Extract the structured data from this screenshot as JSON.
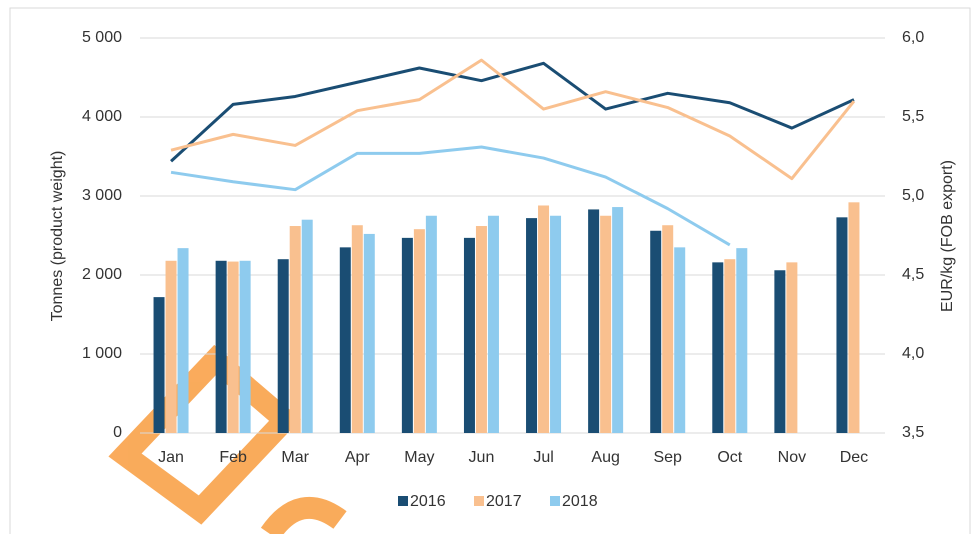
{
  "chart_data": {
    "type": "bar_line",
    "y_label": "Tonnes (product weight)",
    "y2_label": "EUR/kg (FOB export)",
    "categories": [
      "Jan",
      "Feb",
      "Mar",
      "Apr",
      "May",
      "Jun",
      "Jul",
      "Aug",
      "Sep",
      "Oct",
      "Nov",
      "Dec"
    ],
    "series": [
      {
        "name": "2016",
        "color": "#1a4d73",
        "values": [
          1720,
          2180,
          2200,
          2350,
          2470,
          2470,
          2720,
          2830,
          2560,
          2160,
          2060,
          2730
        ],
        "y2_values": [
          5.22,
          5.58,
          5.63,
          5.72,
          5.81,
          5.73,
          5.84,
          5.55,
          5.65,
          5.59,
          5.43,
          5.61
        ]
      },
      {
        "name": "2017",
        "color": "#f9c08f",
        "values": [
          2180,
          2170,
          2620,
          2630,
          2580,
          2620,
          2880,
          2750,
          2630,
          2200,
          2160,
          2920
        ],
        "y2_values": [
          5.29,
          5.39,
          5.32,
          5.54,
          5.61,
          5.86,
          5.55,
          5.66,
          5.56,
          5.38,
          5.11,
          5.6
        ]
      },
      {
        "name": "2018",
        "color": "#8ecbee",
        "values": [
          2340,
          2180,
          2700,
          2520,
          2750,
          2750,
          2750,
          2860,
          2350,
          2340,
          null,
          null
        ],
        "y2_values": [
          5.15,
          5.09,
          5.04,
          5.27,
          5.27,
          5.31,
          5.24,
          5.12,
          4.92,
          4.69,
          null,
          null
        ]
      }
    ],
    "ylim": [
      0,
      5000
    ],
    "yticks": [
      0,
      {
        "value": 1000,
        "label": "1 000"
      },
      {
        "value": 2000,
        "label": "2 000"
      },
      {
        "value": 3000,
        "label": "3 000"
      },
      {
        "value": 4000,
        "label": "4 000"
      },
      {
        "value": 5000,
        "label": "5 000"
      }
    ],
    "y2lim": [
      3.5,
      6.0
    ],
    "y2ticks": [
      {
        "value": 3.5,
        "label": "3,5"
      },
      {
        "value": 4.0,
        "label": "4,0"
      },
      {
        "value": 4.5,
        "label": "4,5"
      },
      {
        "value": 5.0,
        "label": "5,0"
      },
      {
        "value": 5.5,
        "label": "5,5"
      },
      {
        "value": 6.0,
        "label": "6,0"
      }
    ],
    "grid": true,
    "legend": "bottom"
  }
}
